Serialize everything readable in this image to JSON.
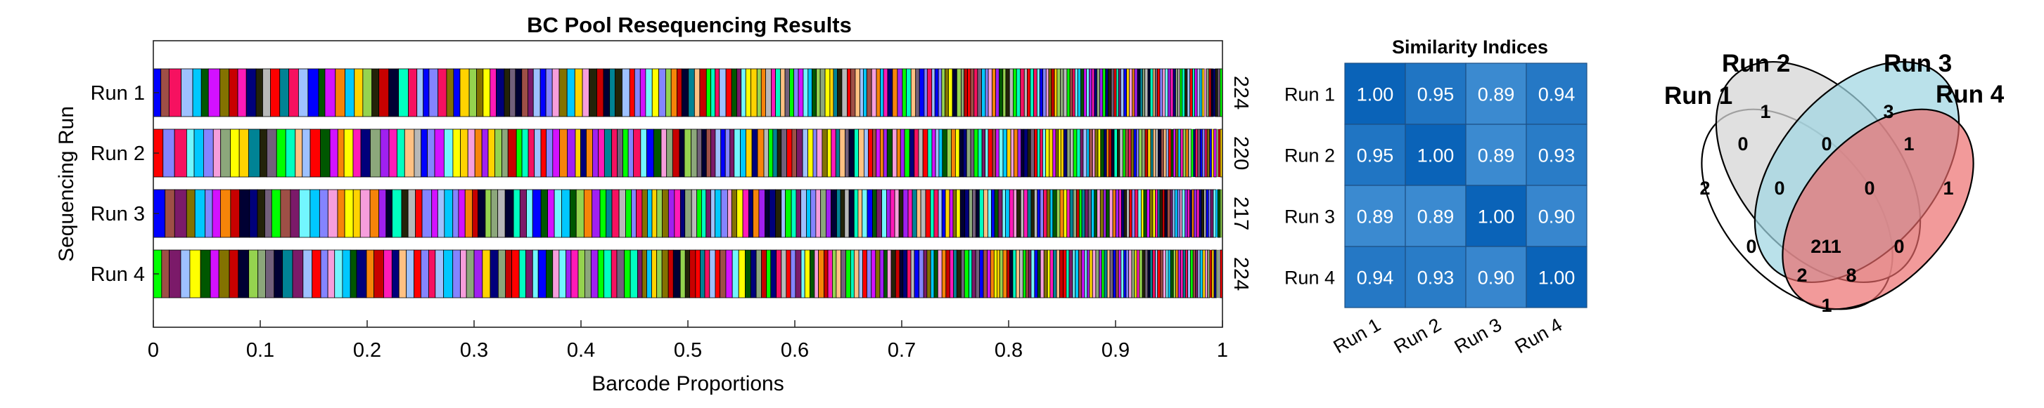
{
  "chart_data": [
    {
      "type": "bar",
      "orientation": "horizontal",
      "stacked": true,
      "title": "BC Pool Resequencing Results",
      "xlabel": "Barcode Proportions",
      "ylabel": "Sequencing Run",
      "xlim": [
        0,
        1
      ],
      "xticks": [
        "0",
        "0.1",
        "0.2",
        "0.3",
        "0.4",
        "0.5",
        "0.6",
        "0.7",
        "0.8",
        "0.9",
        "1"
      ],
      "categories": [
        "Run 1",
        "Run 2",
        "Run 3",
        "Run 4"
      ],
      "barcode_counts": [
        224,
        220,
        217,
        224
      ],
      "count_labels": [
        "224",
        "220",
        "217",
        "224"
      ]
    },
    {
      "type": "heatmap",
      "title": "Similarity Indices",
      "row_labels": [
        "Run 1",
        "Run 2",
        "Run 3",
        "Run 4"
      ],
      "col_labels": [
        "Run 1",
        "Run 2",
        "Run 3",
        "Run 4"
      ],
      "values": [
        [
          1.0,
          0.95,
          0.89,
          0.94
        ],
        [
          0.95,
          1.0,
          0.89,
          0.93
        ],
        [
          0.89,
          0.89,
          1.0,
          0.9
        ],
        [
          0.94,
          0.93,
          0.9,
          1.0
        ]
      ],
      "cell_labels": [
        [
          "1.00",
          "0.95",
          "0.89",
          "0.94"
        ],
        [
          "0.95",
          "1.00",
          "0.89",
          "0.93"
        ],
        [
          "0.89",
          "0.89",
          "1.00",
          "0.90"
        ],
        [
          "0.94",
          "0.93",
          "0.90",
          "1.00"
        ]
      ]
    },
    {
      "type": "venn",
      "sets": [
        {
          "name": "Run 1",
          "color": "#ffffff"
        },
        {
          "name": "Run 2",
          "color": "#d4d4d4"
        },
        {
          "name": "Run 3",
          "color": "#a8dbe6"
        },
        {
          "name": "Run 4",
          "color": "#ee7b7b"
        }
      ],
      "regions": [
        {
          "sets": [
            "Run 1"
          ],
          "value": "2"
        },
        {
          "sets": [
            "Run 2"
          ],
          "value": "1"
        },
        {
          "sets": [
            "Run 3"
          ],
          "value": "3"
        },
        {
          "sets": [
            "Run 4"
          ],
          "value": "1"
        },
        {
          "sets": [
            "Run 1",
            "Run 2"
          ],
          "value": "0"
        },
        {
          "sets": [
            "Run 2",
            "Run 3"
          ],
          "value": "0"
        },
        {
          "sets": [
            "Run 3",
            "Run 4"
          ],
          "value": "1"
        },
        {
          "sets": [
            "Run 1",
            "Run 2",
            "Run 3"
          ],
          "value": "0"
        },
        {
          "sets": [
            "Run 2",
            "Run 3",
            "Run 4"
          ],
          "value": "0"
        },
        {
          "sets": [
            "Run 1",
            "Run 3"
          ],
          "value": "0"
        },
        {
          "sets": [
            "Run 2",
            "Run 4"
          ],
          "value": "0"
        },
        {
          "sets": [
            "Run 1",
            "Run 2",
            "Run 3",
            "Run 4"
          ],
          "value": "211"
        },
        {
          "sets": [
            "Run 1",
            "Run 3",
            "Run 4"
          ],
          "value": "2"
        },
        {
          "sets": [
            "Run 1",
            "Run 2",
            "Run 4"
          ],
          "value": "8"
        },
        {
          "sets": [
            "Run 1",
            "Run 4"
          ],
          "value": "1"
        }
      ]
    }
  ],
  "colors": {
    "heat_low": "#3b8ad0",
    "heat_high": "#0a63b8",
    "bar_palette": [
      "#0000ff",
      "#ff0000",
      "#00ff00",
      "#000033",
      "#ff1ab8",
      "#ffd300",
      "#005700",
      "#8484ff",
      "#9e4f46",
      "#00ffc1",
      "#008395",
      "#00007b",
      "#95d34f",
      "#f69edc",
      "#d311ff",
      "#7b1a69",
      "#f61160",
      "#ffc183",
      "#232309",
      "#8ca77b",
      "#f68409",
      "#837200",
      "#72f6ff",
      "#9ec1ff",
      "#72607b",
      "#b8b8b8",
      "#c80000",
      "#a020f0",
      "#ffff00",
      "#00c8ff"
    ]
  }
}
